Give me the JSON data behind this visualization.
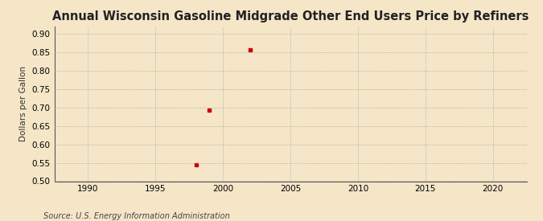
{
  "title": "Annual Wisconsin Gasoline Midgrade Other End Users Price by Refiners",
  "ylabel": "Dollars per Gallon",
  "source": "Source: U.S. Energy Information Administration",
  "background_color": "#f5e6c8",
  "data_x": [
    1998,
    1999,
    2002
  ],
  "data_y": [
    0.545,
    0.693,
    0.856
  ],
  "marker_color": "#cc0000",
  "marker": "s",
  "marker_size": 3.5,
  "xlim": [
    1987.5,
    2022.5
  ],
  "ylim": [
    0.5,
    0.92
  ],
  "xticks": [
    1990,
    1995,
    2000,
    2005,
    2010,
    2015,
    2020
  ],
  "yticks": [
    0.5,
    0.55,
    0.6,
    0.65,
    0.7,
    0.75,
    0.8,
    0.85,
    0.9
  ],
  "grid_color": "#aaaaaa",
  "title_fontsize": 10.5,
  "label_fontsize": 7.5,
  "tick_fontsize": 7.5,
  "source_fontsize": 7
}
